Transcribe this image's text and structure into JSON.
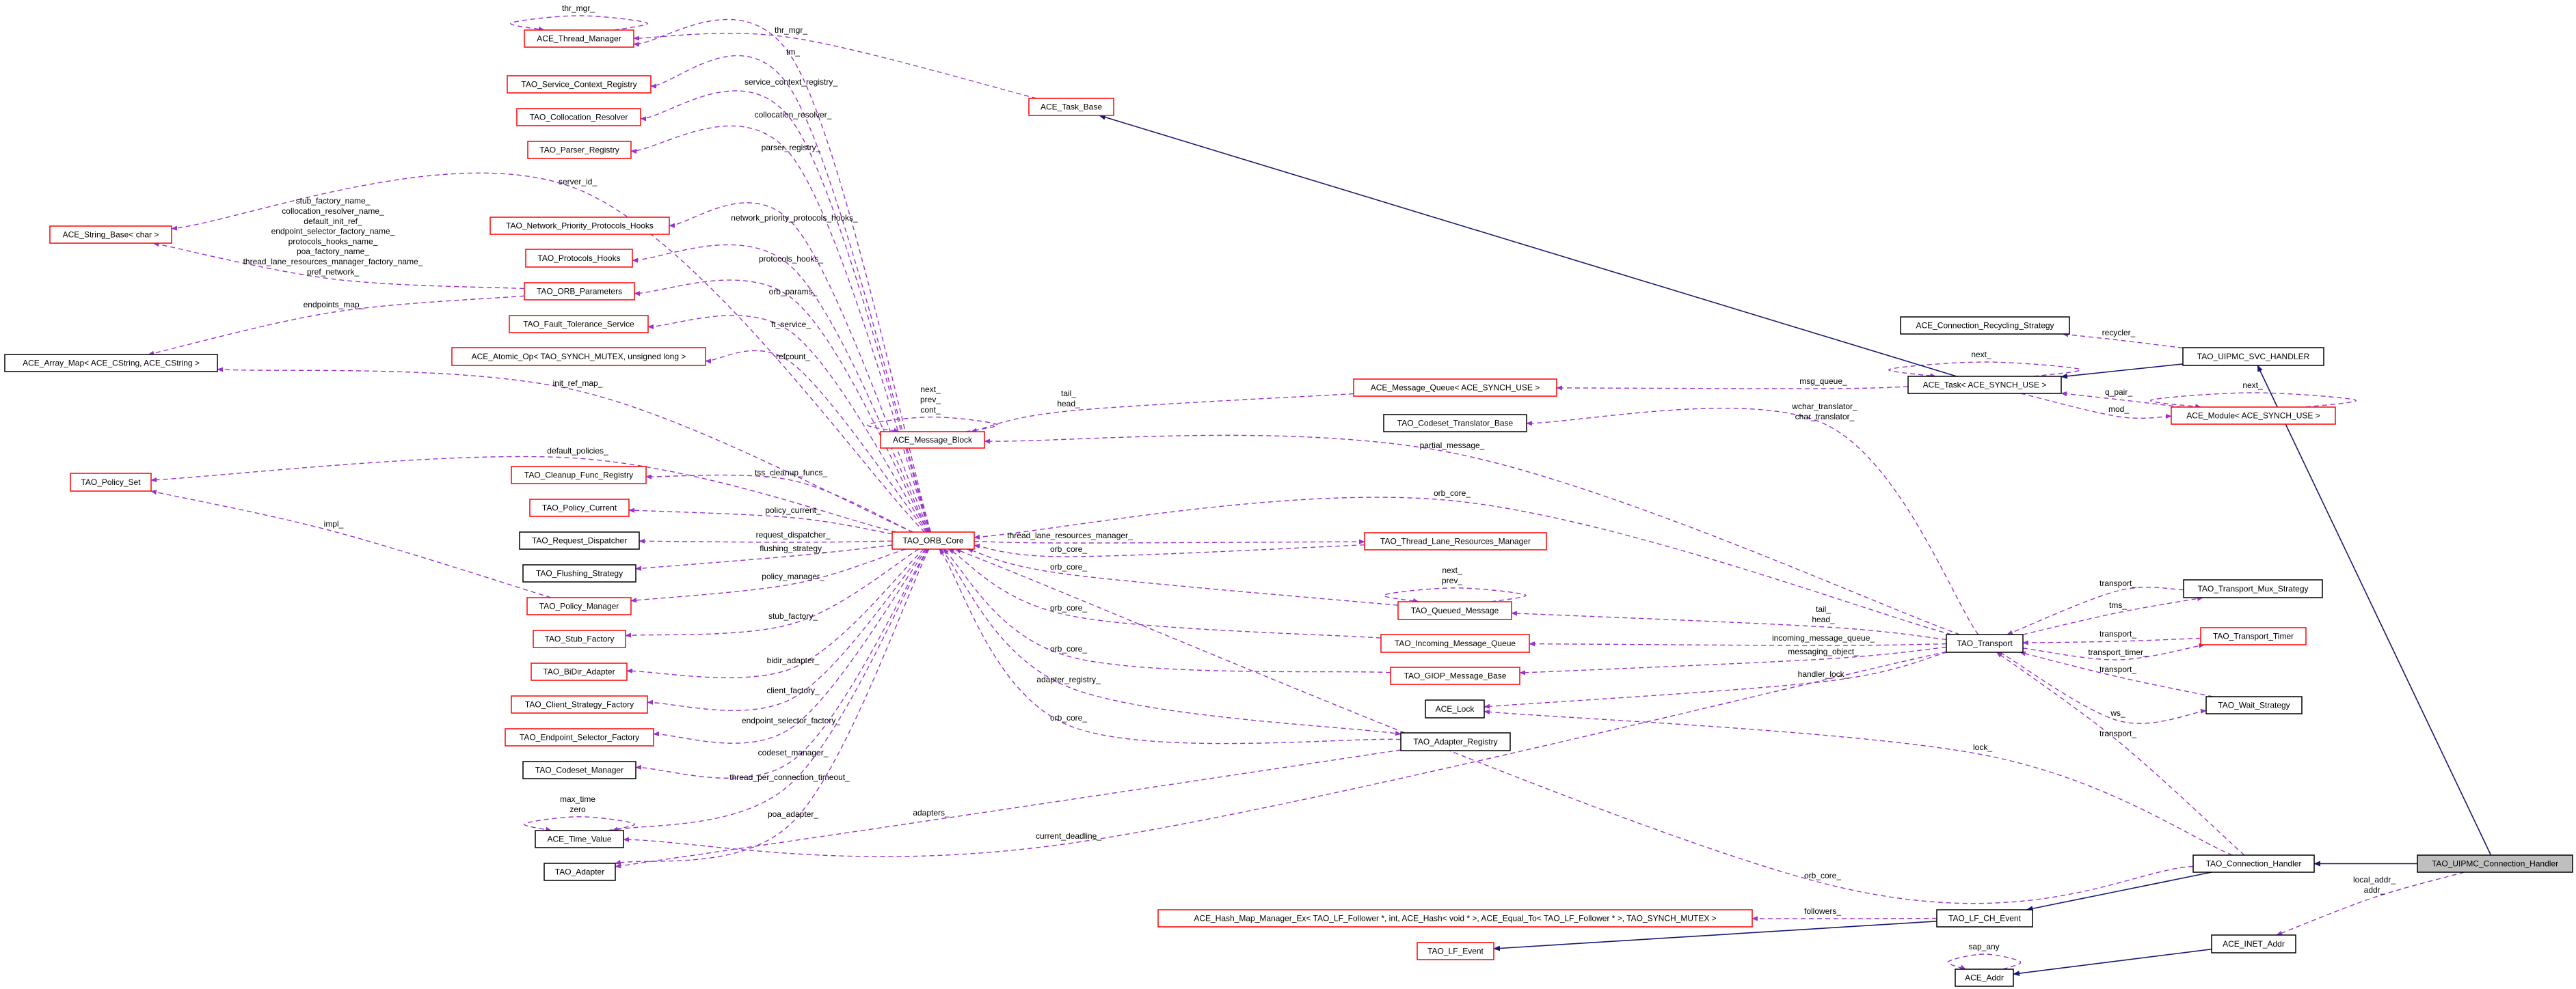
{
  "colors": {
    "usage_edge": "#9a32cd",
    "inheritance_edge": "#191970",
    "undocumented_border": "#ff0000",
    "documented_border": "#000000",
    "highlight_fill": "#bfbfbf"
  },
  "nodes": [
    {
      "id": "tm",
      "name": "ACE_Thread_Manager",
      "style": "red"
    },
    {
      "id": "scr",
      "name": "TAO_Service_Context_Registry",
      "style": "red"
    },
    {
      "id": "cr",
      "name": "TAO_Collocation_Resolver",
      "style": "red"
    },
    {
      "id": "pr",
      "name": "TAO_Parser_Registry",
      "style": "red"
    },
    {
      "id": "sb",
      "name": "ACE_String_Base< char >",
      "style": "red"
    },
    {
      "id": "npph",
      "name": "TAO_Network_Priority_Protocols_Hooks",
      "style": "red"
    },
    {
      "id": "ph",
      "name": "TAO_Protocols_Hooks",
      "style": "red"
    },
    {
      "id": "op",
      "name": "TAO_ORB_Parameters",
      "style": "red"
    },
    {
      "id": "fts",
      "name": "TAO_Fault_Tolerance_Service",
      "style": "red"
    },
    {
      "id": "am",
      "name": "ACE_Array_Map< ACE_CString, ACE_CString >",
      "style": "black"
    },
    {
      "id": "ao",
      "name": "ACE_Atomic_Op< TAO_SYNCH_MUTEX, unsigned long >",
      "style": "red"
    },
    {
      "id": "ps",
      "name": "TAO_Policy_Set",
      "style": "red"
    },
    {
      "id": "cfr",
      "name": "TAO_Cleanup_Func_Registry",
      "style": "red"
    },
    {
      "id": "pc",
      "name": "TAO_Policy_Current",
      "style": "red"
    },
    {
      "id": "rd",
      "name": "TAO_Request_Dispatcher",
      "style": "black"
    },
    {
      "id": "fs",
      "name": "TAO_Flushing_Strategy",
      "style": "black"
    },
    {
      "id": "pm",
      "name": "TAO_Policy_Manager",
      "style": "red"
    },
    {
      "id": "sf",
      "name": "TAO_Stub_Factory",
      "style": "red"
    },
    {
      "id": "bda",
      "name": "TAO_BiDir_Adapter",
      "style": "red"
    },
    {
      "id": "csf",
      "name": "TAO_Client_Strategy_Factory",
      "style": "red"
    },
    {
      "id": "esf",
      "name": "TAO_Endpoint_Selector_Factory",
      "style": "red"
    },
    {
      "id": "cm",
      "name": "TAO_Codeset_Manager",
      "style": "black"
    },
    {
      "id": "tv",
      "name": "ACE_Time_Value",
      "style": "black"
    },
    {
      "id": "ad",
      "name": "TAO_Adapter",
      "style": "black"
    },
    {
      "id": "tb",
      "name": "ACE_Task_Base",
      "style": "red"
    },
    {
      "id": "mb",
      "name": "ACE_Message_Block",
      "style": "red"
    },
    {
      "id": "mq",
      "name": "ACE_Message_Queue< ACE_SYNCH_USE >",
      "style": "red"
    },
    {
      "id": "ctb",
      "name": "TAO_Codeset_Translator_Base",
      "style": "black"
    },
    {
      "id": "oc",
      "name": "TAO_ORB_Core",
      "style": "red"
    },
    {
      "id": "tlrm",
      "name": "TAO_Thread_Lane_Resources_Manager",
      "style": "red"
    },
    {
      "id": "qm",
      "name": "TAO_Queued_Message",
      "style": "red"
    },
    {
      "id": "imq",
      "name": "TAO_Incoming_Message_Queue",
      "style": "red"
    },
    {
      "id": "gmb",
      "name": "TAO_GIOP_Message_Base",
      "style": "red"
    },
    {
      "id": "lk",
      "name": "ACE_Lock",
      "style": "black"
    },
    {
      "id": "ar",
      "name": "TAO_Adapter_Registry",
      "style": "black"
    },
    {
      "id": "hm",
      "name": "ACE_Hash_Map_Manager_Ex< TAO_LF_Follower *, int, ACE_Hash< void * >, ACE_Equal_To< TAO_LF_Follower * >, TAO_SYNCH_MUTEX >",
      "style": "red"
    },
    {
      "id": "lfe",
      "name": "TAO_LF_Event",
      "style": "red"
    },
    {
      "id": "crs",
      "name": "ACE_Connection_Recycling_Strategy",
      "style": "black"
    },
    {
      "id": "svc",
      "name": "TAO_UIPMC_SVC_HANDLER",
      "style": "black"
    },
    {
      "id": "task",
      "name": "ACE_Task< ACE_SYNCH_USE >",
      "style": "black"
    },
    {
      "id": "mod",
      "name": "ACE_Module< ACE_SYNCH_USE >",
      "style": "red"
    },
    {
      "id": "tms",
      "name": "TAO_Transport_Mux_Strategy",
      "style": "black"
    },
    {
      "id": "tr",
      "name": "TAO_Transport",
      "style": "black"
    },
    {
      "id": "tt",
      "name": "TAO_Transport_Timer",
      "style": "red"
    },
    {
      "id": "ws",
      "name": "TAO_Wait_Strategy",
      "style": "black"
    },
    {
      "id": "ch",
      "name": "TAO_Connection_Handler",
      "style": "black"
    },
    {
      "id": "uch",
      "name": "TAO_UIPMC_Connection_Handler",
      "style": "highlight"
    },
    {
      "id": "lfch",
      "name": "TAO_LF_CH_Event",
      "style": "black"
    },
    {
      "id": "ia",
      "name": "ACE_INET_Addr",
      "style": "black"
    },
    {
      "id": "aa",
      "name": "ACE_Addr",
      "style": "black"
    }
  ],
  "edges": [
    {
      "from": "tm",
      "to": "tm",
      "kind": "usage",
      "label": [
        "thr_mgr_"
      ]
    },
    {
      "from": "tv",
      "to": "tv",
      "kind": "usage",
      "label": [
        "max_time",
        "zero"
      ]
    },
    {
      "from": "mb",
      "to": "mb",
      "kind": "usage",
      "label": [
        "next_",
        "prev_",
        "cont_"
      ]
    },
    {
      "from": "qm",
      "to": "qm",
      "kind": "usage",
      "label": [
        "next_",
        "prev_"
      ]
    },
    {
      "from": "task",
      "to": "task",
      "kind": "usage",
      "label": [
        "next_"
      ]
    },
    {
      "from": "mod",
      "to": "mod",
      "kind": "usage",
      "label": [
        "next_"
      ]
    },
    {
      "from": "aa",
      "to": "aa",
      "kind": "usage",
      "label": [
        "sap_any"
      ]
    },
    {
      "from": "tb",
      "to": "tm",
      "kind": "usage",
      "label": [
        "thr_mgr_"
      ]
    },
    {
      "from": "oc",
      "to": "tm",
      "kind": "usage",
      "label": [
        "tm_"
      ]
    },
    {
      "from": "oc",
      "to": "scr",
      "kind": "usage",
      "label": [
        "service_context_registry_"
      ]
    },
    {
      "from": "oc",
      "to": "cr",
      "kind": "usage",
      "label": [
        "collocation_resolver_"
      ]
    },
    {
      "from": "oc",
      "to": "pr",
      "kind": "usage",
      "label": [
        "parser_registry_"
      ]
    },
    {
      "from": "oc",
      "to": "sb",
      "kind": "usage",
      "label": [
        "server_id_"
      ]
    },
    {
      "from": "op",
      "to": "sb",
      "kind": "usage",
      "label": [
        "stub_factory_name_",
        "collocation_resolver_name_",
        "default_init_ref_",
        "endpoint_selector_factory_name_",
        "protocols_hooks_name_",
        "poa_factory_name_",
        "thread_lane_resources_manager_factory_name_",
        "pref_network_"
      ]
    },
    {
      "from": "oc",
      "to": "npph",
      "kind": "usage",
      "label": [
        "network_priority_protocols_hooks_"
      ]
    },
    {
      "from": "oc",
      "to": "ph",
      "kind": "usage",
      "label": [
        "protocols_hooks_"
      ]
    },
    {
      "from": "oc",
      "to": "op",
      "kind": "usage",
      "label": [
        "orb_params_"
      ]
    },
    {
      "from": "op",
      "to": "am",
      "kind": "usage",
      "label": [
        "endpoints_map_"
      ]
    },
    {
      "from": "oc",
      "to": "fts",
      "kind": "usage",
      "label": [
        "ft_service_"
      ]
    },
    {
      "from": "oc",
      "to": "ao",
      "kind": "usage",
      "label": [
        "refcount_"
      ]
    },
    {
      "from": "oc",
      "to": "am",
      "kind": "usage",
      "label": [
        "init_ref_map_"
      ]
    },
    {
      "from": "oc",
      "to": "ps",
      "kind": "usage",
      "label": [
        "default_policies_"
      ]
    },
    {
      "from": "oc",
      "to": "cfr",
      "kind": "usage",
      "label": [
        "tss_cleanup_funcs_"
      ]
    },
    {
      "from": "pm",
      "to": "ps",
      "kind": "usage",
      "label": [
        "impl_"
      ]
    },
    {
      "from": "oc",
      "to": "pc",
      "kind": "usage",
      "label": [
        "policy_current_"
      ]
    },
    {
      "from": "oc",
      "to": "rd",
      "kind": "usage",
      "label": [
        "request_dispatcher_"
      ]
    },
    {
      "from": "oc",
      "to": "fs",
      "kind": "usage",
      "label": [
        "flushing_strategy_"
      ]
    },
    {
      "from": "oc",
      "to": "pm",
      "kind": "usage",
      "label": [
        "policy_manager_"
      ]
    },
    {
      "from": "oc",
      "to": "sf",
      "kind": "usage",
      "label": [
        "stub_factory_"
      ]
    },
    {
      "from": "oc",
      "to": "bda",
      "kind": "usage",
      "label": [
        "bidir_adapter_"
      ]
    },
    {
      "from": "oc",
      "to": "csf",
      "kind": "usage",
      "label": [
        "client_factory_"
      ]
    },
    {
      "from": "oc",
      "to": "esf",
      "kind": "usage",
      "label": [
        "endpoint_selector_factory_"
      ]
    },
    {
      "from": "oc",
      "to": "cm",
      "kind": "usage",
      "label": [
        "codeset_manager_"
      ]
    },
    {
      "from": "oc",
      "to": "tv",
      "kind": "usage",
      "label": [
        "thread_per_connection_timeout_"
      ]
    },
    {
      "from": "oc",
      "to": "ad",
      "kind": "usage",
      "label": [
        "poa_adapter_"
      ]
    },
    {
      "from": "ar",
      "to": "ad",
      "kind": "usage",
      "label": [
        "adapters_"
      ]
    },
    {
      "from": "tr",
      "to": "tv",
      "kind": "usage",
      "label": [
        "current_deadline_"
      ]
    },
    {
      "from": "mq",
      "to": "mb",
      "kind": "usage",
      "label": [
        "tail_",
        "head_"
      ]
    },
    {
      "from": "tr",
      "to": "mb",
      "kind": "usage",
      "label": [
        "partial_message_"
      ]
    },
    {
      "from": "tr",
      "to": "oc",
      "kind": "usage",
      "label": [
        "orb_core_"
      ]
    },
    {
      "from": "oc",
      "to": "tlrm",
      "kind": "usage",
      "label": [
        "thread_lane_resources_manager_"
      ]
    },
    {
      "from": "tlrm",
      "to": "oc",
      "kind": "usage",
      "label": [
        "orb_core_"
      ]
    },
    {
      "from": "qm",
      "to": "oc",
      "kind": "usage",
      "label": [
        "orb_core_"
      ]
    },
    {
      "from": "imq",
      "to": "oc",
      "kind": "usage",
      "label": [
        "orb_core_"
      ]
    },
    {
      "from": "gmb",
      "to": "oc",
      "kind": "usage",
      "label": [
        "orb_core_"
      ]
    },
    {
      "from": "oc",
      "to": "ar",
      "kind": "usage",
      "label": [
        "adapter_registry_"
      ]
    },
    {
      "from": "ar",
      "to": "oc",
      "kind": "usage",
      "label": [
        "orb_core_"
      ]
    },
    {
      "from": "ch",
      "to": "oc",
      "kind": "usage",
      "label": [
        "orb_core_"
      ]
    },
    {
      "from": "task",
      "to": "mq",
      "kind": "usage",
      "label": [
        "msg_queue_"
      ]
    },
    {
      "from": "tr",
      "to": "ctb",
      "kind": "usage",
      "label": [
        "wchar_translator_",
        "char_translator_"
      ]
    },
    {
      "from": "svc",
      "to": "crs",
      "kind": "usage",
      "label": [
        "recycler_"
      ]
    },
    {
      "from": "mod",
      "to": "task",
      "kind": "usage",
      "label": [
        "q_pair_"
      ]
    },
    {
      "from": "task",
      "to": "mod",
      "kind": "usage",
      "label": [
        "mod_"
      ]
    },
    {
      "from": "tr",
      "to": "qm",
      "kind": "usage",
      "label": [
        "tail_",
        "head_"
      ]
    },
    {
      "from": "tr",
      "to": "imq",
      "kind": "usage",
      "label": [
        "incoming_message_queue_"
      ]
    },
    {
      "from": "tr",
      "to": "gmb",
      "kind": "usage",
      "label": [
        "messaging_object_"
      ]
    },
    {
      "from": "tr",
      "to": "lk",
      "kind": "usage",
      "label": [
        "handler_lock_"
      ]
    },
    {
      "from": "ch",
      "to": "lk",
      "kind": "usage",
      "label": [
        "lock_"
      ]
    },
    {
      "from": "tms",
      "to": "tr",
      "kind": "usage",
      "label": [
        "transport_"
      ]
    },
    {
      "from": "tr",
      "to": "tms",
      "kind": "usage",
      "label": [
        "tms_"
      ]
    },
    {
      "from": "tt",
      "to": "tr",
      "kind": "usage",
      "label": [
        "transport_"
      ]
    },
    {
      "from": "tr",
      "to": "tt",
      "kind": "usage",
      "label": [
        "transport_timer_"
      ]
    },
    {
      "from": "ws",
      "to": "tr",
      "kind": "usage",
      "label": [
        "transport_"
      ]
    },
    {
      "from": "tr",
      "to": "ws",
      "kind": "usage",
      "label": [
        "ws_"
      ]
    },
    {
      "from": "ch",
      "to": "tr",
      "kind": "usage",
      "label": [
        "transport_"
      ]
    },
    {
      "from": "lfch",
      "to": "hm",
      "kind": "usage",
      "label": [
        "followers_"
      ]
    },
    {
      "from": "uch",
      "to": "ia",
      "kind": "usage",
      "label": [
        "local_addr_",
        "addr_"
      ]
    },
    {
      "from": "task",
      "to": "tb",
      "kind": "inheritance",
      "label": []
    },
    {
      "from": "svc",
      "to": "task",
      "kind": "inheritance",
      "label": []
    },
    {
      "from": "uch",
      "to": "svc",
      "kind": "inheritance",
      "label": []
    },
    {
      "from": "uch",
      "to": "ch",
      "kind": "inheritance",
      "label": []
    },
    {
      "from": "ch",
      "to": "lfch",
      "kind": "inheritance",
      "label": []
    },
    {
      "from": "lfch",
      "to": "lfe",
      "kind": "inheritance",
      "label": []
    },
    {
      "from": "ia",
      "to": "aa",
      "kind": "inheritance",
      "label": []
    }
  ]
}
